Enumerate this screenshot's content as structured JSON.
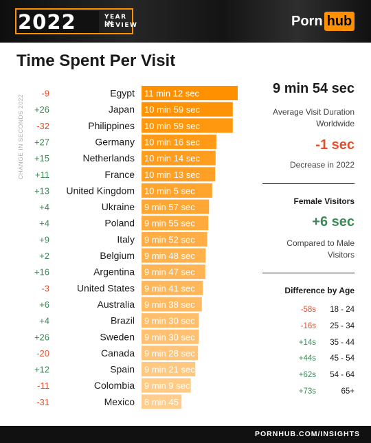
{
  "header": {
    "year": "2022",
    "year_word_1": "YEAR IN",
    "year_word_2": "REVIEW",
    "logo_part_1": "Porn",
    "logo_part_2": "hub"
  },
  "chart_data": {
    "type": "bar",
    "orientation": "horizontal",
    "title": "Time Spent Per Visit",
    "side_label": "CHANGE IN SECONDS 2022",
    "unit": "seconds",
    "categories": [
      "Egypt",
      "Japan",
      "Philippines",
      "Germany",
      "Netherlands",
      "France",
      "United Kingdom",
      "Ukraine",
      "Poland",
      "Italy",
      "Belgium",
      "Argentina",
      "United States",
      "Australia",
      "Brazil",
      "Sweden",
      "Canada",
      "Spain",
      "Colombia",
      "Mexico"
    ],
    "values": [
      672,
      659,
      659,
      616,
      614,
      613,
      605,
      597,
      595,
      592,
      588,
      587,
      581,
      578,
      570,
      570,
      568,
      561,
      549,
      525
    ],
    "value_labels": [
      "11 min 12 sec",
      "10 min 59 sec",
      "10 min 59 sec",
      "10 min 16 sec",
      "10 min 14 sec",
      "10 min 13 sec",
      "10 min 5 sec",
      "9 min 57 sec",
      "9 min 55 sec",
      "9 min 52 sec",
      "9 min 48 sec",
      "9 min 47 sec",
      "9 min 41 sec",
      "9 min 38 sec",
      "9 min 30 sec",
      "9 min 30 sec",
      "9 min 28 sec",
      "9 min 21 sec",
      "9 min 9 sec",
      "8 min 45 sec"
    ],
    "changes": [
      "-9",
      "+26",
      "-32",
      "+27",
      "+15",
      "+11",
      "+13",
      "+4",
      "+4",
      "+9",
      "+2",
      "+16",
      "-3",
      "+6",
      "+4",
      "+26",
      "-20",
      "+12",
      "-11",
      "-31"
    ],
    "colors": {
      "bar_top": "#ff9000",
      "bar_bottom": "#ffd9a8",
      "positive": "#3b8a55",
      "negative": "#e0502e"
    }
  },
  "summary": {
    "avg_value": "9 min 54 sec",
    "avg_label": "Average Visit Duration Worldwide",
    "decrease_value": "-1 sec",
    "decrease_label": "Decrease in 2022",
    "female_heading": "Female Visitors",
    "female_value": "+6 sec",
    "female_label": "Compared to Male Visitors",
    "age_heading": "Difference by Age",
    "age_rows": [
      {
        "diff": "-58s",
        "range": "18 - 24"
      },
      {
        "diff": "-16s",
        "range": "25 - 34"
      },
      {
        "diff": "+14s",
        "range": "35 - 44"
      },
      {
        "diff": "+44s",
        "range": "45 - 54"
      },
      {
        "diff": "+62s",
        "range": "54 - 64"
      },
      {
        "diff": "+73s",
        "range": "65+"
      }
    ]
  },
  "footer": {
    "text": "PORNHUB.COM/INSIGHTS"
  }
}
